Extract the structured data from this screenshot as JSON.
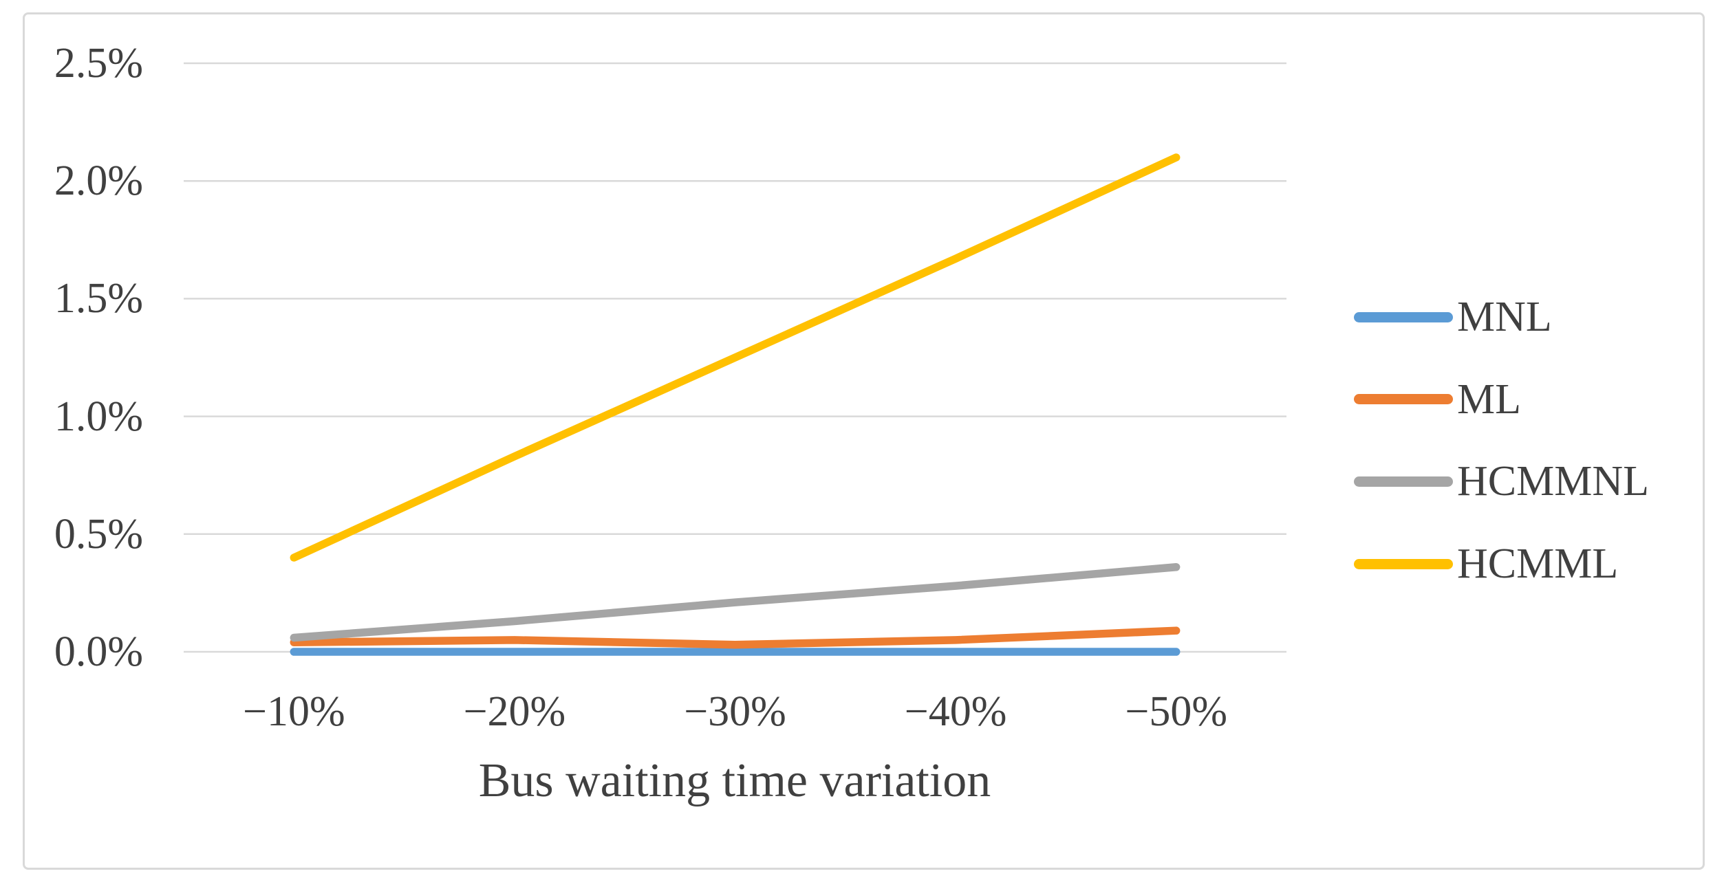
{
  "chart_data": {
    "type": "line",
    "title": "",
    "xlabel": "Bus waiting time variation",
    "ylabel": "",
    "categories": [
      "−10%",
      "−20%",
      "−30%",
      "−40%",
      "−50%"
    ],
    "y_ticks": [
      "0.0%",
      "0.5%",
      "1.0%",
      "1.5%",
      "2.0%",
      "2.5%"
    ],
    "ylim": [
      0,
      2.5
    ],
    "grid": true,
    "legend_position": "right",
    "series": [
      {
        "name": "MNL",
        "color": "#5B9BD5",
        "values": [
          0.0,
          0.0,
          0.0,
          0.0,
          0.0
        ]
      },
      {
        "name": "ML",
        "color": "#ED7D31",
        "values": [
          0.04,
          0.05,
          0.03,
          0.05,
          0.09
        ]
      },
      {
        "name": "HCMMNL",
        "color": "#A5A5A5",
        "values": [
          0.06,
          0.13,
          0.21,
          0.28,
          0.36
        ]
      },
      {
        "name": "HCMML",
        "color": "#FFC000",
        "values": [
          0.4,
          0.83,
          1.25,
          1.67,
          2.1
        ]
      }
    ]
  },
  "colors": {
    "gridline": "#D9D9D9",
    "frame_border": "#D9D9D9",
    "axis_text": "#404040",
    "background": "#FFFFFF"
  }
}
